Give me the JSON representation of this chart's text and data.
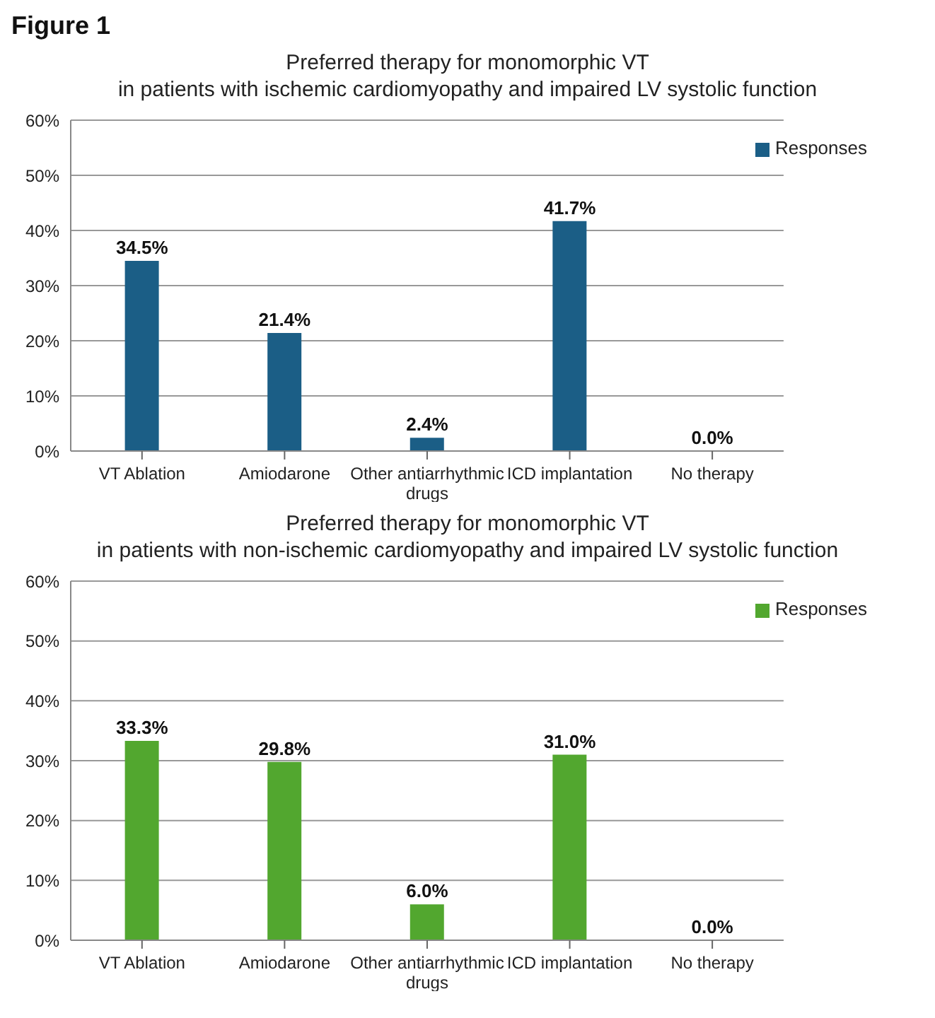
{
  "chart_data": [
    {
      "type": "bar",
      "title": "Preferred therapy for monomorphic VT\nin patients with ischemic cardiomyopathy and impaired LV systolic function",
      "annotations": [
        "Figure 1"
      ],
      "categories": [
        "VT Ablation",
        "Amiodarone",
        "Other antiarrhythmic drugs",
        "ICD implantation",
        "No therapy"
      ],
      "series": [
        {
          "name": "Responses",
          "color": "#1b5e86",
          "values": [
            34.5,
            21.4,
            2.4,
            41.7,
            0.0
          ],
          "value_labels": [
            "34.5%",
            "21.4%",
            "2.4%",
            "41.7%",
            "0.0%"
          ]
        }
      ],
      "ylim": [
        0,
        60
      ],
      "yticks": [
        {
          "value": 0,
          "label": "0%"
        },
        {
          "value": 10,
          "label": "10%"
        },
        {
          "value": 20,
          "label": "20%"
        },
        {
          "value": 30,
          "label": "30%"
        },
        {
          "value": 40,
          "label": "40%"
        },
        {
          "value": 50,
          "label": "50%"
        },
        {
          "value": 60,
          "label": "60%"
        }
      ],
      "grid": "y",
      "legend": "top right"
    },
    {
      "type": "bar",
      "title": "Preferred therapy for monomorphic VT\nin patients with non-ischemic cardiomyopathy and impaired LV systolic function",
      "categories": [
        "VT Ablation",
        "Amiodarone",
        "Other antiarrhythmic drugs",
        "ICD implantation",
        "No therapy"
      ],
      "series": [
        {
          "name": "Responses",
          "color": "#52a72f",
          "values": [
            33.3,
            29.8,
            6.0,
            31.0,
            0.0
          ],
          "value_labels": [
            "33.3%",
            "29.8%",
            "6.0%",
            "31.0%",
            "0.0%"
          ]
        }
      ],
      "ylim": [
        0,
        60
      ],
      "yticks": [
        {
          "value": 0,
          "label": "0%"
        },
        {
          "value": 10,
          "label": "10%"
        },
        {
          "value": 20,
          "label": "20%"
        },
        {
          "value": 30,
          "label": "30%"
        },
        {
          "value": 40,
          "label": "40%"
        },
        {
          "value": 50,
          "label": "50%"
        },
        {
          "value": 60,
          "label": "60%"
        }
      ],
      "grid": "y",
      "legend": "top right"
    }
  ]
}
